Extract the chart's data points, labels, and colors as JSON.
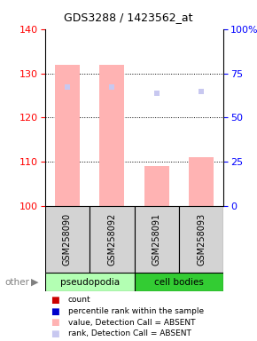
{
  "title": "GDS3288 / 1423562_at",
  "samples": [
    "GSM258090",
    "GSM258092",
    "GSM258091",
    "GSM258093"
  ],
  "groups": [
    "pseudopodia",
    "pseudopodia",
    "cell bodies",
    "cell bodies"
  ],
  "bar_values": [
    132,
    132,
    109,
    111
  ],
  "rank_values": [
    127,
    127,
    125.5,
    126
  ],
  "ylim_left": [
    100,
    140
  ],
  "ylim_right": [
    0,
    100
  ],
  "yticks_left": [
    100,
    110,
    120,
    130,
    140
  ],
  "yticks_right": [
    0,
    25,
    50,
    75,
    100
  ],
  "bar_color_absent": "#ffb3b3",
  "rank_color_absent": "#c8c8f0",
  "group_colors": {
    "pseudopodia": "#b3ffb3",
    "cell bodies": "#33cc33"
  },
  "legend_items": [
    {
      "label": "count",
      "color": "#cc0000"
    },
    {
      "label": "percentile rank within the sample",
      "color": "#0000cc"
    },
    {
      "label": "value, Detection Call = ABSENT",
      "color": "#ffb3b3"
    },
    {
      "label": "rank, Detection Call = ABSENT",
      "color": "#c8c8f0"
    }
  ],
  "bar_width": 0.55
}
